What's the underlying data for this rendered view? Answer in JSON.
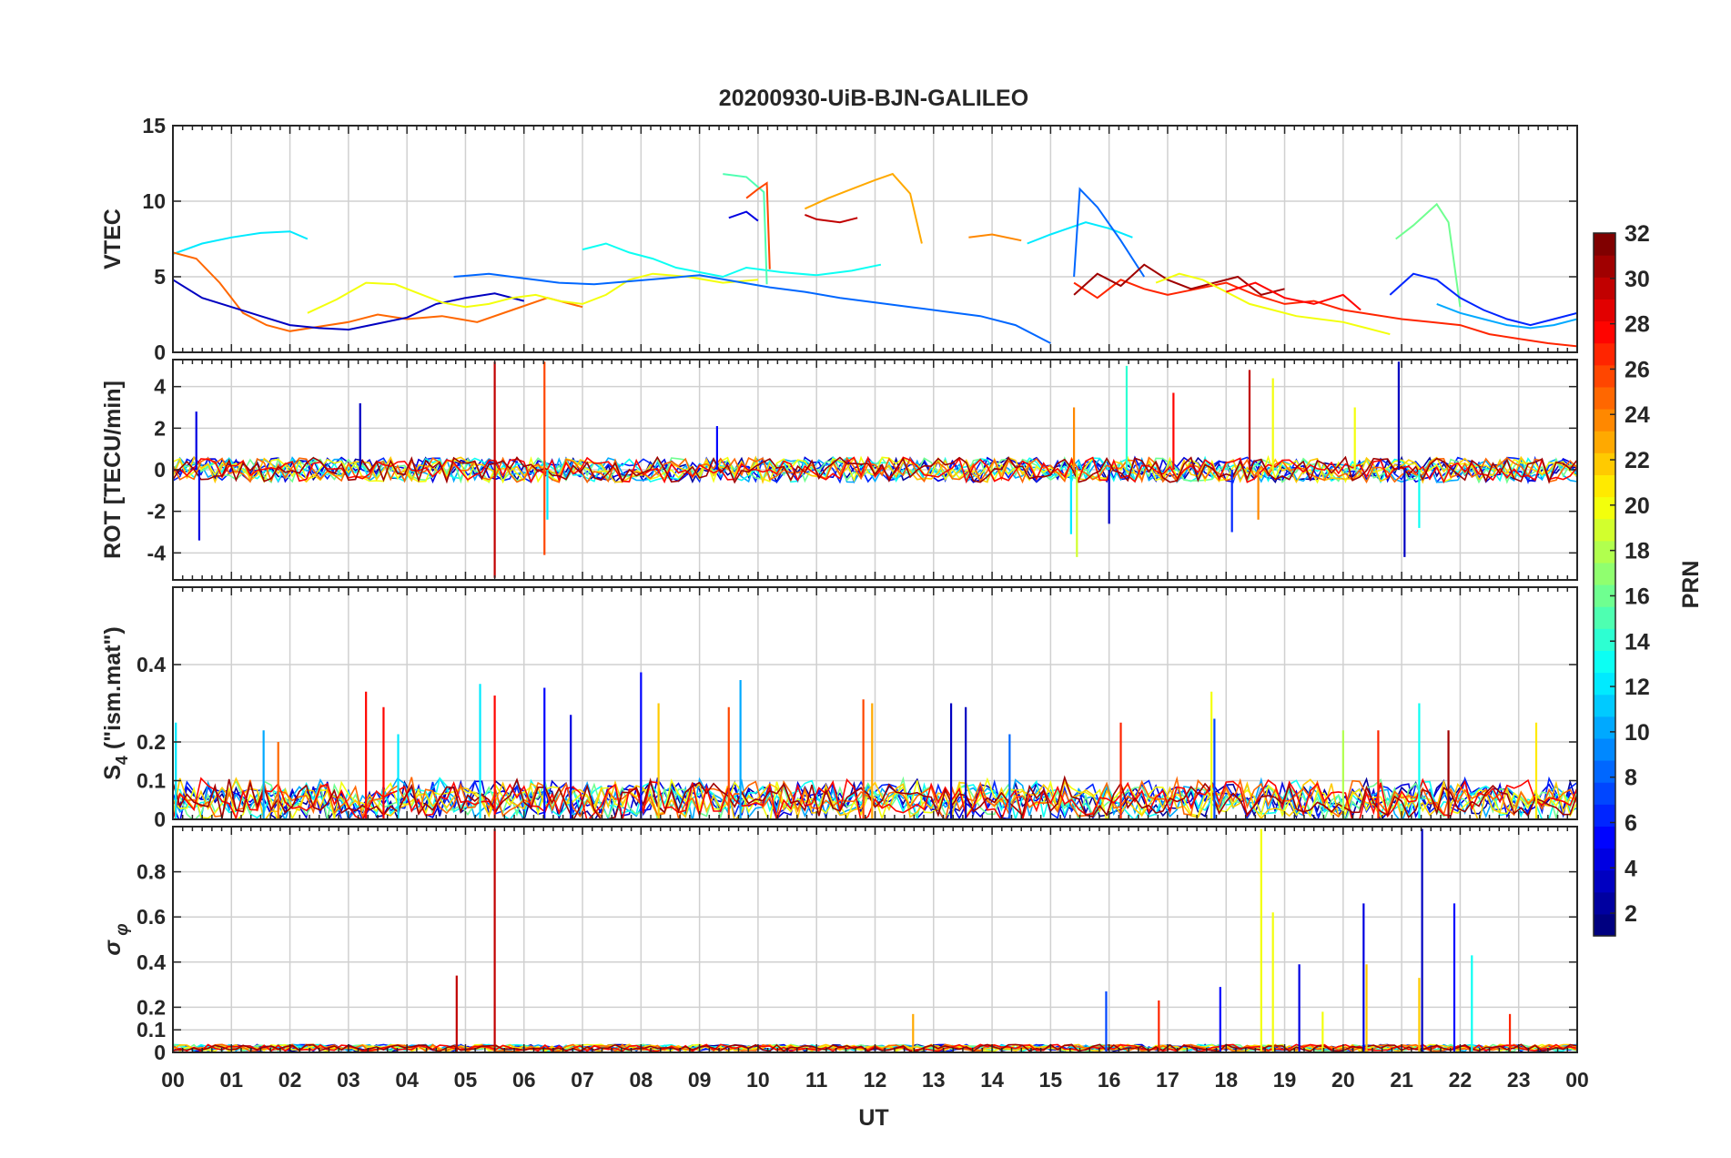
{
  "chart_data": {
    "type": "line",
    "title": "20200930-UiB-BJN-GALILEO",
    "xlabel": "UT",
    "x_ticks": [
      "00",
      "01",
      "02",
      "03",
      "04",
      "05",
      "06",
      "07",
      "08",
      "09",
      "10",
      "11",
      "12",
      "13",
      "14",
      "15",
      "16",
      "17",
      "18",
      "19",
      "20",
      "21",
      "22",
      "23",
      "00"
    ],
    "xlim": [
      0,
      24
    ],
    "grid": true,
    "panels": [
      {
        "ylabel": "VTEC",
        "ylim": [
          0,
          15
        ],
        "y_ticks": [
          "0",
          "5",
          "10",
          "15"
        ],
        "series": [
          {
            "prn": 12,
            "x": [
              0.0,
              0.5,
              1.0,
              1.5,
              2.0,
              2.3
            ],
            "y": [
              6.5,
              7.2,
              7.6,
              7.9,
              8.0,
              7.5
            ]
          },
          {
            "prn": 25,
            "x": [
              0.0,
              0.4,
              0.8,
              1.2,
              1.6,
              2.0,
              2.5,
              3.0,
              3.5,
              4.0,
              4.6,
              5.2,
              5.8,
              6.4,
              7.0
            ],
            "y": [
              6.6,
              6.2,
              4.6,
              2.6,
              1.8,
              1.4,
              1.7,
              2.0,
              2.5,
              2.2,
              2.4,
              2.0,
              2.8,
              3.6,
              3.0
            ]
          },
          {
            "prn": 3,
            "x": [
              0.0,
              0.5,
              1.0,
              1.5,
              2.0,
              2.5,
              3.0,
              3.5,
              4.0,
              4.5,
              5.0,
              5.5,
              6.0
            ],
            "y": [
              4.8,
              3.6,
              3.0,
              2.4,
              1.8,
              1.6,
              1.5,
              1.9,
              2.3,
              3.2,
              3.6,
              3.9,
              3.4
            ]
          },
          {
            "prn": 20,
            "x": [
              2.3,
              2.8,
              3.3,
              3.8,
              4.2,
              4.6,
              5.0,
              5.4,
              5.8,
              6.2,
              6.6,
              7.0,
              7.4,
              7.8,
              8.2,
              8.8,
              9.4,
              10.0
            ],
            "y": [
              2.6,
              3.5,
              4.6,
              4.5,
              3.9,
              3.3,
              3.0,
              3.2,
              3.6,
              3.8,
              3.4,
              3.2,
              3.8,
              4.8,
              5.2,
              5.0,
              4.6,
              4.8
            ]
          },
          {
            "prn": 8,
            "x": [
              4.8,
              5.4,
              6.0,
              6.6,
              7.2,
              7.8,
              8.4,
              9.0,
              9.6,
              10.2,
              10.8,
              11.4,
              12.0,
              12.6,
              13.2,
              13.8,
              14.4,
              15.0
            ],
            "y": [
              5.0,
              5.2,
              4.9,
              4.6,
              4.5,
              4.7,
              4.9,
              5.1,
              4.7,
              4.3,
              4.0,
              3.6,
              3.3,
              3.0,
              2.7,
              2.4,
              1.8,
              0.6
            ]
          },
          {
            "prn": 13,
            "x": [
              7.0,
              7.4,
              7.8,
              8.2,
              8.6,
              9.0,
              9.4,
              9.8,
              10.4,
              11.0,
              11.6,
              12.1
            ],
            "y": [
              6.8,
              7.2,
              6.6,
              6.2,
              5.6,
              5.3,
              5.0,
              5.6,
              5.3,
              5.1,
              5.4,
              5.8
            ]
          },
          {
            "prn": 15,
            "x": [
              9.4,
              9.8,
              10.1,
              10.15
            ],
            "y": [
              11.8,
              11.6,
              10.6,
              4.5
            ]
          },
          {
            "prn": 26,
            "x": [
              9.8,
              10.0,
              10.15,
              10.2
            ],
            "y": [
              10.2,
              10.8,
              11.2,
              5.5
            ]
          },
          {
            "prn": 23,
            "x": [
              10.8,
              11.2,
              11.6,
              12.0,
              12.3,
              12.6,
              12.8
            ],
            "y": [
              9.5,
              10.2,
              10.8,
              11.4,
              11.8,
              10.5,
              7.2
            ]
          },
          {
            "prn": 30,
            "x": [
              10.8,
              11.0,
              11.4,
              11.7
            ],
            "y": [
              9.1,
              8.8,
              8.6,
              8.9
            ]
          },
          {
            "prn": 4,
            "x": [
              9.5,
              9.8,
              10.0
            ],
            "y": [
              8.9,
              9.3,
              8.7
            ]
          },
          {
            "prn": 24,
            "x": [
              13.6,
              14.0,
              14.5
            ],
            "y": [
              7.6,
              7.8,
              7.4
            ]
          },
          {
            "prn": 12,
            "x": [
              14.6,
              15.0,
              15.6,
              16.0,
              16.4
            ],
            "y": [
              7.2,
              7.8,
              8.6,
              8.2,
              7.6
            ]
          },
          {
            "prn": 8,
            "x": [
              15.4,
              15.5,
              15.8,
              16.2,
              16.6
            ],
            "y": [
              5.0,
              10.8,
              9.6,
              7.4,
              5.0
            ]
          },
          {
            "prn": 27,
            "x": [
              15.4,
              15.8,
              16.2,
              16.6,
              17.0,
              17.5,
              18.0,
              18.5,
              19.0,
              19.5,
              20.0,
              20.5,
              21.0,
              21.5,
              22.0,
              22.5,
              23.0,
              23.5,
              24.0
            ],
            "y": [
              4.6,
              3.6,
              4.8,
              4.2,
              3.8,
              4.2,
              4.6,
              3.8,
              3.2,
              3.4,
              2.8,
              2.5,
              2.2,
              2.0,
              1.8,
              1.2,
              0.9,
              0.6,
              0.4
            ]
          },
          {
            "prn": 31,
            "x": [
              15.4,
              15.8,
              16.2,
              16.6,
              17.0,
              17.4,
              17.8,
              18.2,
              18.6,
              19.0
            ],
            "y": [
              3.8,
              5.2,
              4.4,
              5.8,
              4.8,
              4.2,
              4.6,
              5.0,
              3.8,
              4.2
            ]
          },
          {
            "prn": 20,
            "x": [
              16.8,
              17.2,
              17.6,
              18.0,
              18.4,
              18.8,
              19.2,
              19.6,
              20.0,
              20.4,
              20.8
            ],
            "y": [
              4.6,
              5.2,
              4.8,
              4.0,
              3.2,
              2.8,
              2.4,
              2.2,
              2.0,
              1.6,
              1.2
            ]
          },
          {
            "prn": 16,
            "x": [
              20.9,
              21.2,
              21.6,
              21.8,
              22.0
            ],
            "y": [
              7.5,
              8.4,
              9.8,
              8.6,
              3.0
            ]
          },
          {
            "prn": 6,
            "x": [
              20.8,
              21.2,
              21.6,
              22.0,
              22.4,
              22.8,
              23.2,
              23.6,
              24.0
            ],
            "y": [
              3.8,
              5.2,
              4.8,
              3.6,
              2.8,
              2.2,
              1.8,
              2.2,
              2.6
            ]
          },
          {
            "prn": 10,
            "x": [
              21.6,
              22.0,
              22.4,
              22.8,
              23.2,
              23.6,
              24.0
            ],
            "y": [
              3.2,
              2.6,
              2.2,
              1.8,
              1.6,
              1.8,
              2.2
            ]
          },
          {
            "prn": 28,
            "x": [
              18.0,
              18.5,
              19.0,
              19.5,
              20.0,
              20.3
            ],
            "y": [
              4.0,
              4.6,
              3.6,
              3.2,
              3.8,
              2.8
            ]
          }
        ]
      },
      {
        "ylabel": "ROT [TECU/min]",
        "ylim": [
          -5.3,
          5.3
        ],
        "y_ticks": [
          "-4",
          "-2",
          "0",
          "2",
          "4"
        ],
        "spikes": [
          {
            "prn": 4,
            "x": 0.45,
            "y": -3.4
          },
          {
            "prn": 4,
            "x": 0.4,
            "y": 2.8
          },
          {
            "prn": 3,
            "x": 3.2,
            "y": 3.2
          },
          {
            "prn": 30,
            "x": 5.5,
            "y": 5.2
          },
          {
            "prn": 30,
            "x": 5.5,
            "y": -5.2
          },
          {
            "prn": 26,
            "x": 6.35,
            "y": 5.2
          },
          {
            "prn": 26,
            "x": 6.35,
            "y": -4.1
          },
          {
            "prn": 12,
            "x": 6.4,
            "y": -2.4
          },
          {
            "prn": 5,
            "x": 9.3,
            "y": 2.1
          },
          {
            "prn": 24,
            "x": 15.4,
            "y": 3.0
          },
          {
            "prn": 19,
            "x": 15.45,
            "y": -4.2
          },
          {
            "prn": 12,
            "x": 15.35,
            "y": -3.1
          },
          {
            "prn": 14,
            "x": 16.3,
            "y": 5.0
          },
          {
            "prn": 3,
            "x": 16.0,
            "y": -2.6
          },
          {
            "prn": 28,
            "x": 17.1,
            "y": 3.7
          },
          {
            "prn": 30,
            "x": 18.4,
            "y": 4.8
          },
          {
            "prn": 20,
            "x": 18.8,
            "y": 4.4
          },
          {
            "prn": 24,
            "x": 18.55,
            "y": -2.4
          },
          {
            "prn": 6,
            "x": 18.1,
            "y": -3.0
          },
          {
            "prn": 3,
            "x": 20.95,
            "y": 5.2
          },
          {
            "prn": 3,
            "x": 21.05,
            "y": -4.2
          },
          {
            "prn": 13,
            "x": 21.3,
            "y": -2.8
          },
          {
            "prn": 20,
            "x": 20.2,
            "y": 3.0
          }
        ]
      },
      {
        "ylabel": "S4 (\"ism.mat\")",
        "ylim": [
          0,
          0.6
        ],
        "y_ticks": [
          "0",
          "0.1",
          "0.2",
          "0.4"
        ],
        "spikes": [
          {
            "prn": 12,
            "x": 0.05,
            "y": 0.25
          },
          {
            "prn": 25,
            "x": 1.8,
            "y": 0.2
          },
          {
            "prn": 10,
            "x": 1.55,
            "y": 0.23
          },
          {
            "prn": 28,
            "x": 3.3,
            "y": 0.33
          },
          {
            "prn": 28,
            "x": 3.6,
            "y": 0.29
          },
          {
            "prn": 12,
            "x": 3.85,
            "y": 0.22
          },
          {
            "prn": 12,
            "x": 5.25,
            "y": 0.35
          },
          {
            "prn": 28,
            "x": 5.5,
            "y": 0.32
          },
          {
            "prn": 5,
            "x": 6.35,
            "y": 0.34
          },
          {
            "prn": 4,
            "x": 6.8,
            "y": 0.27
          },
          {
            "prn": 5,
            "x": 8.0,
            "y": 0.38
          },
          {
            "prn": 22,
            "x": 8.3,
            "y": 0.3
          },
          {
            "prn": 10,
            "x": 9.7,
            "y": 0.36
          },
          {
            "prn": 26,
            "x": 9.5,
            "y": 0.29
          },
          {
            "prn": 26,
            "x": 11.8,
            "y": 0.31
          },
          {
            "prn": 23,
            "x": 11.95,
            "y": 0.3
          },
          {
            "prn": 3,
            "x": 13.3,
            "y": 0.3
          },
          {
            "prn": 3,
            "x": 13.55,
            "y": 0.29
          },
          {
            "prn": 8,
            "x": 14.3,
            "y": 0.22
          },
          {
            "prn": 27,
            "x": 16.2,
            "y": 0.25
          },
          {
            "prn": 7,
            "x": 17.8,
            "y": 0.26
          },
          {
            "prn": 20,
            "x": 17.75,
            "y": 0.33
          },
          {
            "prn": 18,
            "x": 20.0,
            "y": 0.23
          },
          {
            "prn": 27,
            "x": 20.6,
            "y": 0.23
          },
          {
            "prn": 13,
            "x": 21.3,
            "y": 0.3
          },
          {
            "prn": 31,
            "x": 21.8,
            "y": 0.23
          },
          {
            "prn": 21,
            "x": 23.3,
            "y": 0.25
          }
        ]
      },
      {
        "ylabel": "σ_φ",
        "ylim": [
          0,
          1.0
        ],
        "y_ticks": [
          "0",
          "0.1",
          "0.2",
          "0.4",
          "0.6",
          "0.8"
        ],
        "spikes": [
          {
            "prn": 30,
            "x": 4.85,
            "y": 0.34
          },
          {
            "prn": 30,
            "x": 5.5,
            "y": 0.99
          },
          {
            "prn": 23,
            "x": 12.65,
            "y": 0.17
          },
          {
            "prn": 7,
            "x": 15.95,
            "y": 0.27
          },
          {
            "prn": 27,
            "x": 16.85,
            "y": 0.23
          },
          {
            "prn": 5,
            "x": 17.9,
            "y": 0.29
          },
          {
            "prn": 20,
            "x": 18.6,
            "y": 0.99
          },
          {
            "prn": 20,
            "x": 18.8,
            "y": 0.62
          },
          {
            "prn": 4,
            "x": 19.25,
            "y": 0.39
          },
          {
            "prn": 20,
            "x": 19.65,
            "y": 0.18
          },
          {
            "prn": 4,
            "x": 20.35,
            "y": 0.66
          },
          {
            "prn": 22,
            "x": 20.4,
            "y": 0.39
          },
          {
            "prn": 3,
            "x": 21.35,
            "y": 0.99
          },
          {
            "prn": 22,
            "x": 21.3,
            "y": 0.33
          },
          {
            "prn": 5,
            "x": 21.9,
            "y": 0.66
          },
          {
            "prn": 13,
            "x": 22.2,
            "y": 0.43
          },
          {
            "prn": 27,
            "x": 22.85,
            "y": 0.17
          }
        ]
      }
    ],
    "colorbar": {
      "label": "PRN",
      "range": [
        1,
        32
      ],
      "ticks": [
        "2",
        "4",
        "6",
        "8",
        "10",
        "12",
        "14",
        "16",
        "18",
        "20",
        "22",
        "24",
        "26",
        "28",
        "30",
        "32"
      ],
      "colormap": "jet"
    }
  }
}
